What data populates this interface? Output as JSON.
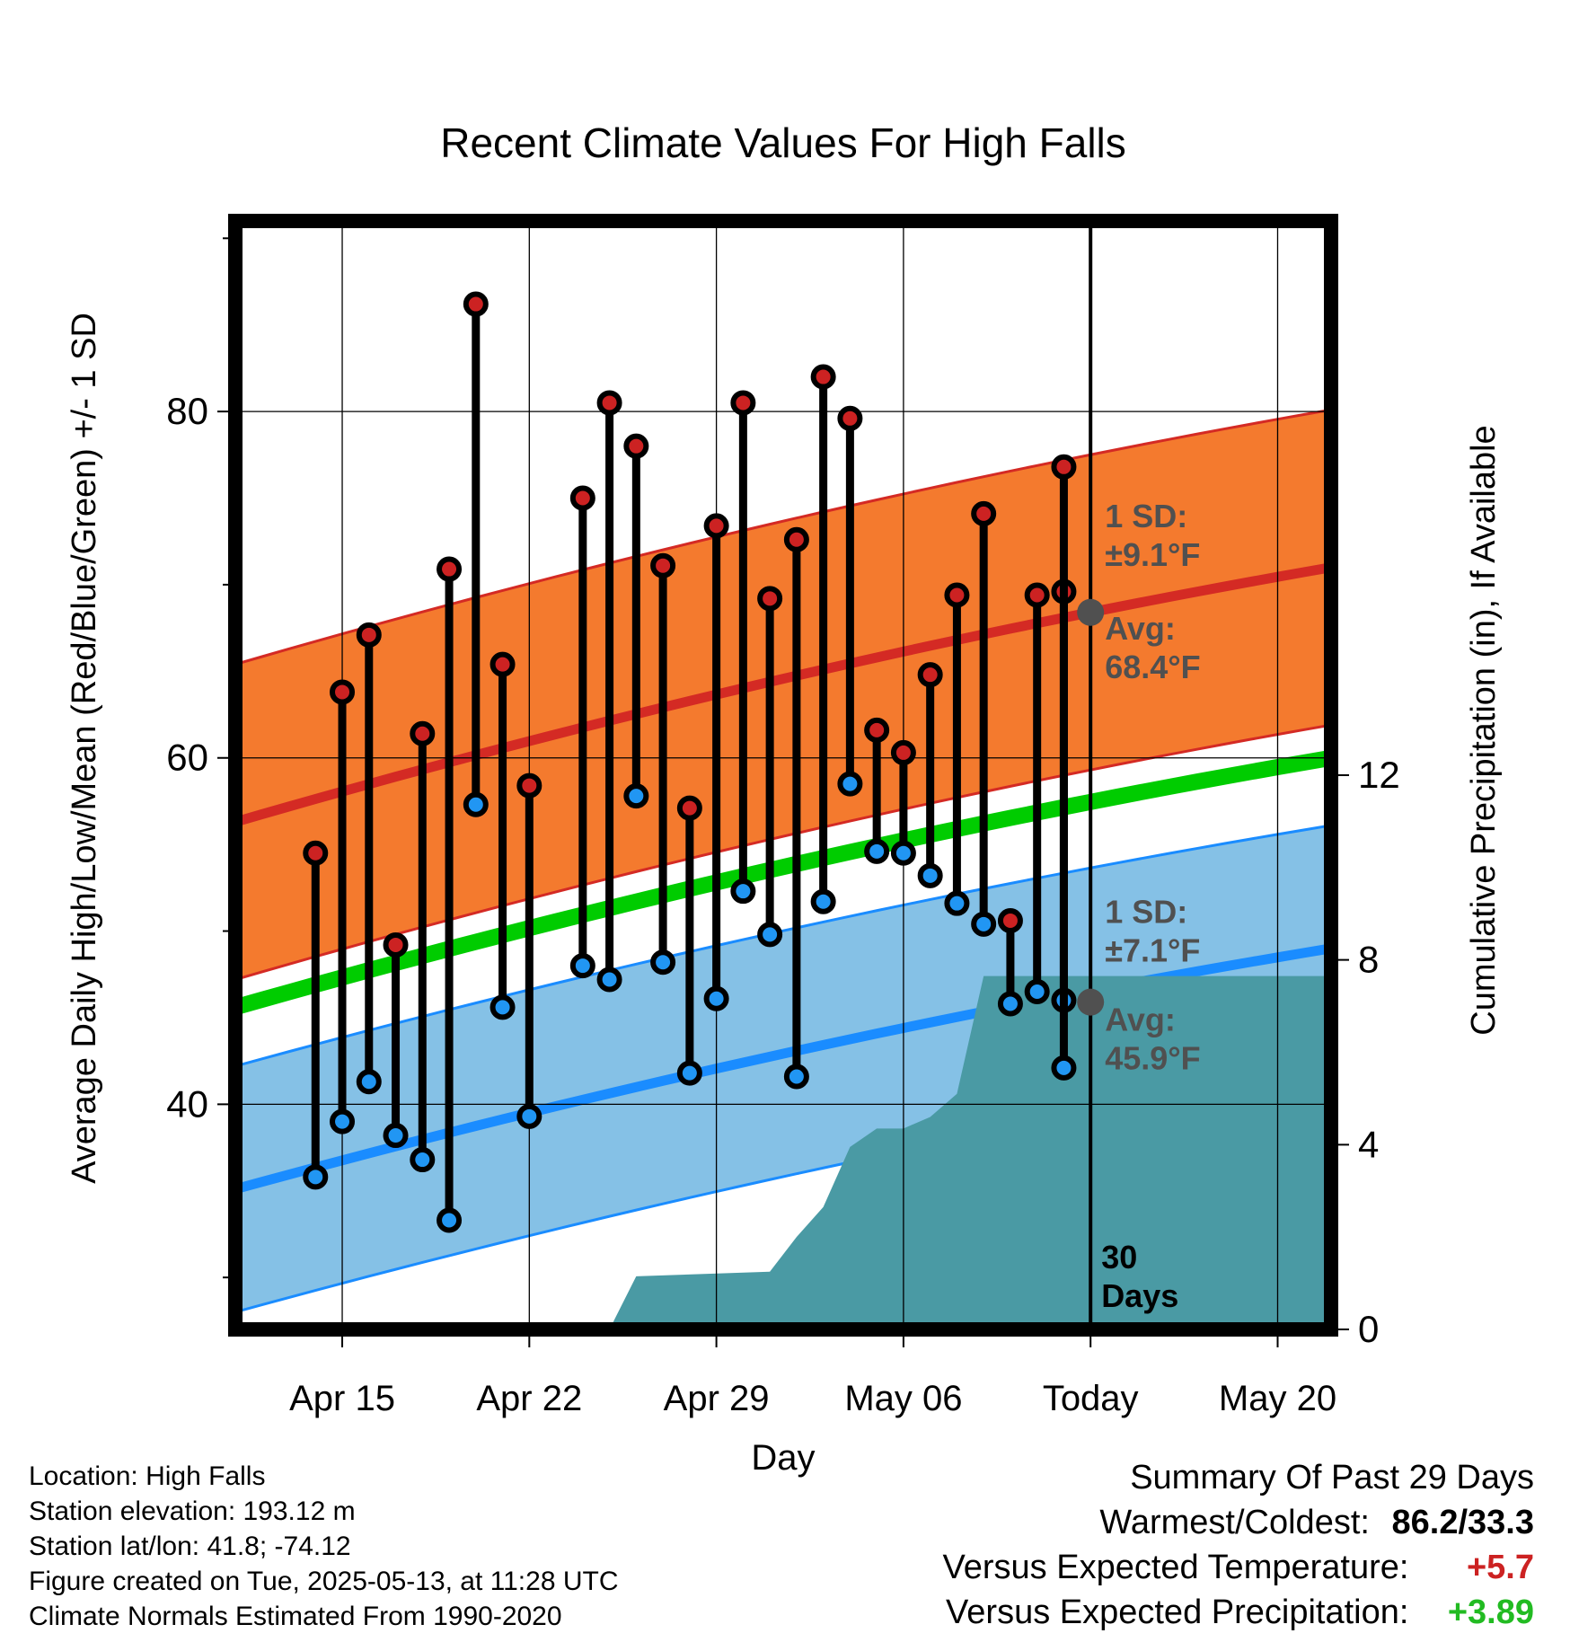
{
  "chart_data": {
    "type": "line",
    "title": "Recent Climate Values For High Falls",
    "xlabel": "Day",
    "ylabel": "Average Daily High/Low/Mean (Red/Blue/Green) +/- 1 SD",
    "y2label": "Cumulative Precipitation (in), If Available",
    "ylim": [
      27,
      91
    ],
    "y2lim": [
      0,
      24
    ],
    "yticks": [
      40,
      60,
      80
    ],
    "y2ticks": [
      0,
      4,
      8,
      12
    ],
    "xlim_dates": [
      "2025-04-11",
      "2025-05-22"
    ],
    "xticks": [
      {
        "date": "2025-04-15",
        "label": "Apr 15"
      },
      {
        "date": "2025-04-22",
        "label": "Apr 22"
      },
      {
        "date": "2025-04-29",
        "label": "Apr 29"
      },
      {
        "date": "2025-05-06",
        "label": "May 06"
      },
      {
        "date": "2025-05-13",
        "label": "Today"
      },
      {
        "date": "2025-05-20",
        "label": "May 20"
      }
    ],
    "grid": true,
    "today": "2025-05-13",
    "today_label": [
      "30",
      "Days"
    ],
    "dates": [
      "2025-04-14",
      "2025-04-15",
      "2025-04-16",
      "2025-04-17",
      "2025-04-18",
      "2025-04-19",
      "2025-04-20",
      "2025-04-21",
      "2025-04-22",
      "2025-04-23",
      "2025-04-24",
      "2025-04-25",
      "2025-04-26",
      "2025-04-27",
      "2025-04-28",
      "2025-04-29",
      "2025-04-30",
      "2025-05-01",
      "2025-05-02",
      "2025-05-03",
      "2025-05-04",
      "2025-05-05",
      "2025-05-06",
      "2025-05-07",
      "2025-05-08",
      "2025-05-09",
      "2025-05-10",
      "2025-05-11",
      "2025-05-12"
    ],
    "highs": [
      54.5,
      63.8,
      67.1,
      49.2,
      61.4,
      70.9,
      86.2,
      65.4,
      58.4,
      null,
      75.0,
      80.5,
      78.0,
      71.1,
      57.1,
      73.4,
      80.5,
      69.2,
      72.6,
      82.0,
      79.6,
      61.6,
      60.3,
      64.8,
      69.4,
      74.1,
      50.6,
      69.4,
      69.6
    ],
    "lows": [
      35.8,
      39.0,
      41.3,
      38.2,
      36.8,
      33.3,
      57.3,
      45.6,
      39.3,
      null,
      48.0,
      47.2,
      57.8,
      48.2,
      41.8,
      46.1,
      52.3,
      49.8,
      41.6,
      51.7,
      58.5,
      54.6,
      54.5,
      53.2,
      51.6,
      50.4,
      45.8,
      46.5,
      46.0
    ],
    "today_high": 76.8,
    "today_low": 42.1,
    "normals": {
      "dates": [
        "2025-04-11",
        "2025-05-22"
      ],
      "high_avg": [
        56.3,
        71.0
      ],
      "low_avg": [
        35.1,
        49.0
      ],
      "mean_avg": [
        45.6,
        60.0
      ],
      "high_sd": 9.1,
      "low_sd": 7.1
    },
    "precip": {
      "x": [
        "2025-04-25",
        "2025-04-26",
        "2025-05-01",
        "2025-05-02",
        "2025-05-03",
        "2025-05-04",
        "2025-05-05",
        "2025-05-06",
        "2025-05-07",
        "2025-05-08",
        "2025-05-09",
        "2025-05-22"
      ],
      "y": [
        0.0,
        1.15,
        1.25,
        2.0,
        2.65,
        3.95,
        4.35,
        4.35,
        4.6,
        5.1,
        7.65,
        7.65
      ]
    },
    "annotations": {
      "high_sd_label": [
        "1 SD:",
        "±9.1°F"
      ],
      "high_avg_label": [
        "Avg:",
        "68.4°F"
      ],
      "low_sd_label": [
        "1 SD:",
        "±7.1°F"
      ],
      "low_avg_label": [
        "Avg:",
        "45.9°F"
      ],
      "today_high_avg": 68.4,
      "today_low_avg": 45.9
    },
    "colors": {
      "high_band": "#f47a2e",
      "high_line": "#d42a24",
      "low_band": "#85c1e6",
      "low_line": "#1a8cff",
      "mean_line": "#00cc00",
      "precip": "#4a9aa4",
      "high_dot": "#cc2222",
      "low_dot": "#2196f3",
      "annotation": "#505050"
    }
  },
  "footer": {
    "location": "Location: High Falls",
    "elevation": "Station elevation: 193.12 m",
    "latlon": "Station lat/lon: 41.8; -74.12",
    "created": "Figure created on Tue, 2025-05-13, at 11:28 UTC",
    "normals": "Climate Normals Estimated From 1990-2020"
  },
  "summary": {
    "header": "Summary Of Past 29 Days",
    "warm_cold_label": "Warmest/Coldest:",
    "warm_cold_value": "86.2/33.3",
    "temp_label": "Versus Expected Temperature:",
    "temp_value": "+5.7",
    "temp_color": "#cc2222",
    "precip_label": "Versus Expected Precipitation:",
    "precip_value": "+3.89",
    "precip_color": "#22bb22"
  }
}
